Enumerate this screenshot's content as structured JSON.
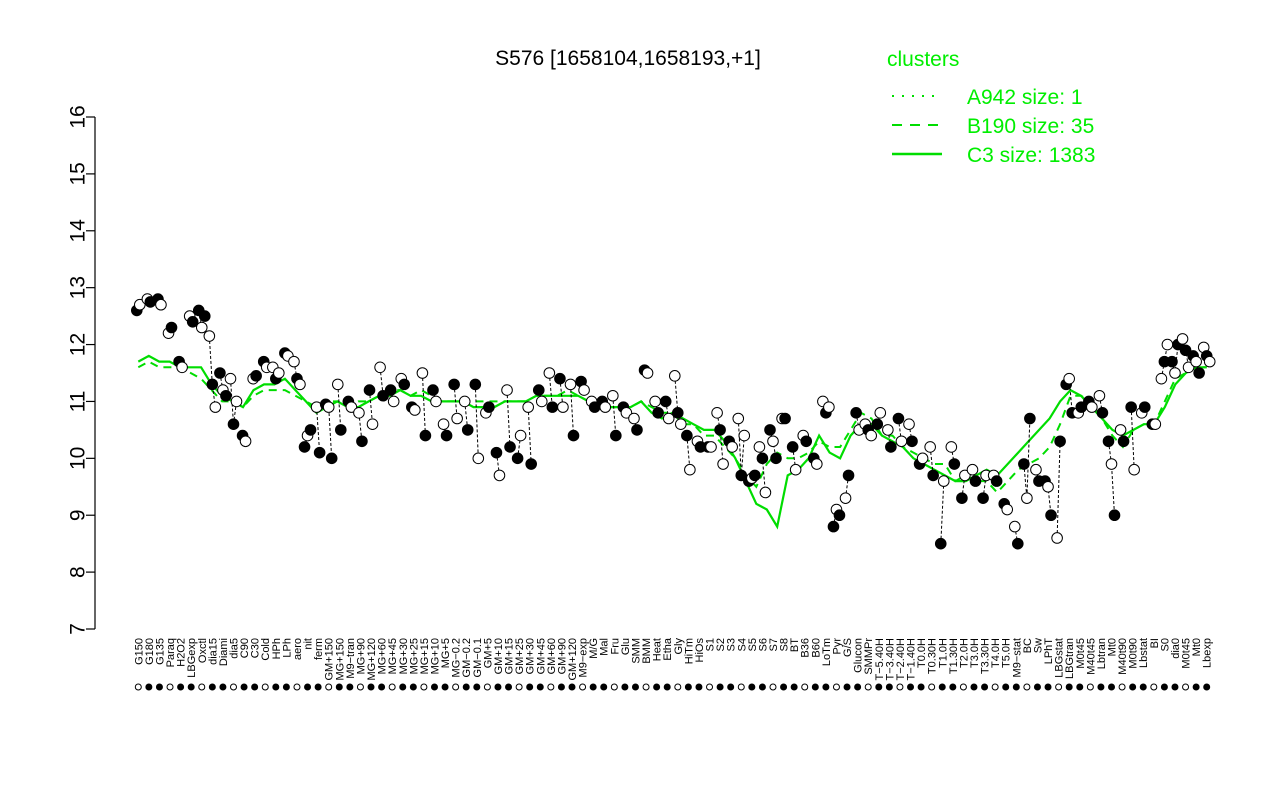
{
  "chart_data": {
    "type": "scatter",
    "title": "S576 [1658104,1658193,+1]",
    "ylim": [
      7,
      16
    ],
    "yticks": [
      "7",
      "8",
      "9",
      "10",
      "11",
      "12",
      "13",
      "14",
      "15",
      "16"
    ],
    "ytick_values": [
      7,
      8,
      9,
      10,
      11,
      12,
      13,
      14,
      15,
      16
    ],
    "xlabels": [
      "G150",
      "G180",
      "G135",
      "Paraq",
      "H2O2",
      "LBGexp",
      "Oxctl",
      "dia15",
      "Diami",
      "dia5",
      "C90",
      "C30",
      "Cold",
      "HPh",
      "LPh",
      "aero",
      "nit",
      "ferm",
      "GM+150",
      "MG+150",
      "M9−tran",
      "MG+90",
      "MG+120",
      "MG+60",
      "MG+45",
      "MG+30",
      "MG+25",
      "MG+15",
      "MG+10",
      "MG+5",
      "MG−0.2",
      "GM−0.2",
      "GM−0.1",
      "GM+5",
      "GM+10",
      "GM+15",
      "GM+25",
      "GM+30",
      "GM+45",
      "GM+60",
      "GM+90",
      "GM+120",
      "M9−exp",
      "M/G",
      "Mal",
      "Fru",
      "Glu",
      "SMM",
      "BMM",
      "Heat",
      "Etha",
      "Gly",
      "HiTm",
      "HiOs",
      "S1",
      "S2",
      "S3",
      "S4",
      "S5",
      "S6",
      "S7",
      "S8",
      "BT",
      "B36",
      "B60",
      "LoTm",
      "Pyr",
      "G/S",
      "Glucon",
      "SMMPr",
      "T−5.40H",
      "T−3.40H",
      "T−2.40H",
      "T−1.40H",
      "T0.0H",
      "T0.30H",
      "T1.0H",
      "T1.30H",
      "T2.0H",
      "T3.0H",
      "T3.30H",
      "T4.0H",
      "T5.0H",
      "M9−stat",
      "BC",
      "Sw",
      "LPhT",
      "LBGstat",
      "LBGtran",
      "M0t45",
      "M40t45",
      "Lbtran",
      "Mt0",
      "M40t90",
      "M0t90",
      "Lbstat",
      "BI",
      "S0",
      "dia0",
      "M0t45",
      "Mt0",
      "Lbexp"
    ],
    "groups": [
      {
        "label": "G150",
        "values": [
          12.6,
          12.7
        ]
      },
      {
        "label": "G180",
        "values": [
          12.8,
          12.75
        ]
      },
      {
        "label": "G135",
        "values": [
          12.8,
          12.7
        ]
      },
      {
        "label": "Paraq",
        "values": [
          12.2,
          12.3
        ]
      },
      {
        "label": "H2O2",
        "values": [
          11.7,
          11.6
        ]
      },
      {
        "label": "LBGexp",
        "values": [
          12.5,
          12.4
        ]
      },
      {
        "label": "Oxctl",
        "values": [
          12.6,
          12.3,
          12.5
        ]
      },
      {
        "label": "dia15",
        "values": [
          12.15,
          11.3,
          10.9
        ]
      },
      {
        "label": "Diami",
        "values": [
          11.5,
          11.2,
          11.1
        ]
      },
      {
        "label": "dia5",
        "values": [
          11.4,
          10.6,
          11.0
        ]
      },
      {
        "label": "C90",
        "values": [
          10.4,
          10.3
        ]
      },
      {
        "label": "C30",
        "values": [
          11.4,
          11.45
        ]
      },
      {
        "label": "Cold",
        "values": [
          11.7,
          11.6
        ]
      },
      {
        "label": "HPh",
        "values": [
          11.6,
          11.4,
          11.5
        ]
      },
      {
        "label": "LPh",
        "values": [
          11.85,
          11.8
        ]
      },
      {
        "label": "aero",
        "values": [
          11.7,
          11.4,
          11.3
        ]
      },
      {
        "label": "nit",
        "values": [
          10.2,
          10.4,
          10.5
        ]
      },
      {
        "label": "ferm",
        "values": [
          10.9,
          10.1
        ]
      },
      {
        "label": "GM+150",
        "values": [
          10.95,
          10.9,
          10.0
        ]
      },
      {
        "label": "MG+150",
        "values": [
          11.3,
          10.5
        ]
      },
      {
        "label": "M9−tran",
        "values": [
          11.0,
          10.9
        ]
      },
      {
        "label": "MG+90",
        "values": [
          10.8,
          10.3
        ]
      },
      {
        "label": "MG+120",
        "values": [
          11.2,
          10.6
        ]
      },
      {
        "label": "MG+60",
        "values": [
          11.6,
          11.1
        ]
      },
      {
        "label": "MG+45",
        "values": [
          11.2,
          11.0
        ]
      },
      {
        "label": "MG+30",
        "values": [
          11.4,
          11.3
        ]
      },
      {
        "label": "MG+25",
        "values": [
          10.9,
          10.85
        ]
      },
      {
        "label": "MG+15",
        "values": [
          11.5,
          10.4
        ]
      },
      {
        "label": "MG+10",
        "values": [
          11.2,
          11.0
        ]
      },
      {
        "label": "MG+5",
        "values": [
          10.6,
          10.4
        ]
      },
      {
        "label": "MG−0.2",
        "values": [
          11.3,
          10.7
        ]
      },
      {
        "label": "GM−0.2",
        "values": [
          11.0,
          10.5
        ]
      },
      {
        "label": "GM−0.1",
        "values": [
          11.3,
          10.0
        ]
      },
      {
        "label": "GM+5",
        "values": [
          10.8,
          10.9
        ]
      },
      {
        "label": "GM+10",
        "values": [
          10.1,
          9.7
        ]
      },
      {
        "label": "GM+15",
        "values": [
          11.2,
          10.2
        ]
      },
      {
        "label": "GM+25",
        "values": [
          10.0,
          10.4
        ]
      },
      {
        "label": "GM+30",
        "values": [
          10.9,
          9.9
        ]
      },
      {
        "label": "GM+45",
        "values": [
          11.2,
          11.0
        ]
      },
      {
        "label": "GM+60",
        "values": [
          11.5,
          10.9
        ]
      },
      {
        "label": "GM+90",
        "values": [
          11.4,
          10.9
        ]
      },
      {
        "label": "GM+120",
        "values": [
          11.3,
          10.4
        ]
      },
      {
        "label": "M9−exp",
        "values": [
          11.35,
          11.2
        ]
      },
      {
        "label": "M/G",
        "values": [
          11.0,
          10.9
        ]
      },
      {
        "label": "Mal",
        "values": [
          11.0,
          10.9
        ]
      },
      {
        "label": "Fru",
        "values": [
          11.1,
          10.4
        ]
      },
      {
        "label": "Glu",
        "values": [
          10.9,
          10.8
        ]
      },
      {
        "label": "SMM",
        "values": [
          10.7,
          10.5
        ]
      },
      {
        "label": "BMM",
        "values": [
          11.55,
          11.5
        ]
      },
      {
        "label": "Heat",
        "values": [
          11.0,
          10.8
        ]
      },
      {
        "label": "Etha",
        "values": [
          11.0,
          10.7
        ]
      },
      {
        "label": "Gly",
        "values": [
          11.45,
          10.8,
          10.6
        ]
      },
      {
        "label": "HiTm",
        "values": [
          10.4,
          9.8
        ]
      },
      {
        "label": "HiOs",
        "values": [
          10.3,
          10.2
        ]
      },
      {
        "label": "S1",
        "values": [
          10.2,
          10.2
        ]
      },
      {
        "label": "S2",
        "values": [
          10.8,
          10.5,
          9.9
        ]
      },
      {
        "label": "S3",
        "values": [
          10.3,
          10.2
        ]
      },
      {
        "label": "S4",
        "values": [
          10.7,
          9.7,
          10.4
        ]
      },
      {
        "label": "S5",
        "values": [
          9.6,
          9.65,
          9.7
        ]
      },
      {
        "label": "S6",
        "values": [
          10.2,
          10.0,
          9.4
        ]
      },
      {
        "label": "S7",
        "values": [
          10.5,
          10.3,
          10.0
        ]
      },
      {
        "label": "S8",
        "values": [
          10.7,
          10.7
        ]
      },
      {
        "label": "BT",
        "values": [
          10.2,
          9.8
        ]
      },
      {
        "label": "B36",
        "values": [
          10.4,
          10.3
        ]
      },
      {
        "label": "B60",
        "values": [
          10.0,
          9.9
        ]
      },
      {
        "label": "LoTm",
        "values": [
          11.0,
          10.8,
          10.9
        ]
      },
      {
        "label": "Pyr",
        "values": [
          8.8,
          9.1,
          9.0
        ]
      },
      {
        "label": "G/S",
        "values": [
          9.3,
          9.7
        ]
      },
      {
        "label": "Glucon",
        "values": [
          10.8,
          10.5
        ]
      },
      {
        "label": "SMMPr",
        "values": [
          10.6,
          10.5,
          10.4
        ]
      },
      {
        "label": "T−5.40H",
        "values": [
          10.6,
          10.8
        ]
      },
      {
        "label": "T−3.40H",
        "values": [
          10.5,
          10.2
        ]
      },
      {
        "label": "T−2.40H",
        "values": [
          10.7,
          10.3
        ]
      },
      {
        "label": "T−1.40H",
        "values": [
          10.6,
          10.3
        ]
      },
      {
        "label": "T0.0H",
        "values": [
          9.9,
          10.0
        ]
      },
      {
        "label": "T0.30H",
        "values": [
          10.2,
          9.7
        ]
      },
      {
        "label": "T1.0H",
        "values": [
          8.5,
          9.6
        ]
      },
      {
        "label": "T1.30H",
        "values": [
          10.2,
          9.9
        ]
      },
      {
        "label": "T2.0H",
        "values": [
          9.3,
          9.7
        ]
      },
      {
        "label": "T3.0H",
        "values": [
          9.8,
          9.6
        ]
      },
      {
        "label": "T3.30H",
        "values": [
          9.3,
          9.7
        ]
      },
      {
        "label": "T4.0H",
        "values": [
          9.7,
          9.6
        ]
      },
      {
        "label": "T5.0H",
        "values": [
          9.2,
          9.1
        ]
      },
      {
        "label": "M9−stat",
        "values": [
          8.8,
          8.5
        ]
      },
      {
        "label": "BC",
        "values": [
          9.9,
          9.3,
          10.7
        ]
      },
      {
        "label": "Sw",
        "values": [
          9.8,
          9.6
        ]
      },
      {
        "label": "LPhT",
        "values": [
          9.6,
          9.5,
          9.0
        ]
      },
      {
        "label": "LBGstat",
        "values": [
          8.6,
          10.3
        ]
      },
      {
        "label": "LBGtran",
        "values": [
          11.3,
          11.4,
          10.8
        ]
      },
      {
        "label": "M0t45",
        "values": [
          10.8,
          10.9
        ]
      },
      {
        "label": "M40t45",
        "values": [
          11.0,
          10.9
        ]
      },
      {
        "label": "Lbtran",
        "values": [
          11.1,
          10.8
        ]
      },
      {
        "label": "Mt0",
        "values": [
          10.3,
          9.9,
          9.0
        ]
      },
      {
        "label": "M40t90",
        "values": [
          10.5,
          10.3
        ]
      },
      {
        "label": "M0t90",
        "values": [
          10.9,
          9.8
        ]
      },
      {
        "label": "Lbstat",
        "values": [
          10.8,
          10.9
        ]
      },
      {
        "label": "BI",
        "values": [
          10.6,
          10.6
        ]
      },
      {
        "label": "S0",
        "values": [
          11.4,
          11.7,
          12.0
        ]
      },
      {
        "label": "dia0",
        "values": [
          11.7,
          11.5,
          12.0
        ]
      },
      {
        "label": "M0t45",
        "values": [
          12.1,
          11.9,
          11.6
        ]
      },
      {
        "label": "Mt0",
        "values": [
          11.8,
          11.7,
          11.5
        ]
      },
      {
        "label": "Lbexp",
        "values": [
          11.95,
          11.8,
          11.7
        ]
      }
    ],
    "series": [
      {
        "name": "A942 size: 1",
        "style": "dotted",
        "values": []
      },
      {
        "name": "B190 size: 35",
        "style": "dashed",
        "values": [
          11.6,
          11.7,
          11.6,
          11.6,
          11.6,
          11.5,
          11.4,
          11.2,
          11.0,
          11.0,
          10.9,
          11.1,
          11.2,
          11.2,
          11.2,
          11.1,
          11.0,
          10.9,
          11.0,
          11.0,
          10.9,
          11.0,
          11.0,
          11.1,
          11.2,
          11.2,
          11.1,
          11.2,
          11.1,
          11.0,
          11.0,
          11.0,
          11.0,
          11.0,
          11.0,
          11.0,
          11.0,
          11.0,
          11.1,
          11.1,
          11.1,
          11.2,
          11.1,
          11.0,
          11.0,
          10.9,
          10.9,
          10.9,
          11.0,
          10.9,
          10.8,
          10.8,
          10.6,
          10.6,
          10.4,
          10.4,
          10.2,
          10.0,
          9.7,
          9.5,
          9.9,
          10.1,
          10.0,
          10.0,
          10.1,
          10.3,
          10.2,
          10.2,
          10.5,
          10.8,
          10.7,
          10.4,
          10.4,
          10.2,
          10.1,
          10.0,
          9.9,
          9.9,
          9.6,
          9.7,
          9.6,
          9.6,
          9.4,
          9.6,
          9.8,
          9.9,
          10.0,
          10.2,
          10.6,
          11.1,
          11.1,
          11.0,
          10.7,
          10.4,
          10.2,
          10.5,
          10.6,
          10.6,
          11.0,
          11.4,
          11.5,
          11.6,
          11.6
        ]
      },
      {
        "name": "C3 size: 1383",
        "style": "solid",
        "values": [
          11.7,
          11.8,
          11.7,
          11.7,
          11.6,
          11.6,
          11.6,
          11.3,
          11.1,
          11.0,
          10.9,
          11.2,
          11.3,
          11.3,
          11.4,
          11.2,
          11.0,
          10.8,
          10.9,
          11.0,
          10.9,
          10.9,
          11.0,
          11.1,
          11.1,
          11.2,
          11.1,
          11.1,
          11.0,
          11.0,
          11.0,
          11.0,
          10.9,
          10.9,
          10.9,
          11.0,
          11.0,
          11.0,
          11.1,
          11.1,
          11.1,
          11.1,
          11.1,
          11.0,
          11.0,
          10.9,
          10.9,
          10.9,
          11.0,
          10.8,
          10.7,
          10.8,
          10.7,
          10.6,
          10.5,
          10.5,
          10.3,
          10.0,
          9.6,
          9.2,
          9.1,
          8.8,
          9.7,
          9.8,
          10.0,
          10.4,
          10.1,
          10.0,
          10.4,
          10.6,
          10.6,
          10.4,
          10.3,
          10.2,
          10.0,
          9.9,
          9.8,
          9.7,
          9.6,
          9.6,
          9.7,
          9.8,
          9.7,
          9.9,
          10.1,
          10.3,
          10.5,
          10.7,
          11.0,
          11.2,
          11.1,
          10.9,
          10.7,
          10.5,
          10.4,
          10.5,
          10.6,
          10.6,
          10.9,
          11.3,
          11.5,
          11.6,
          11.6
        ]
      }
    ],
    "legend": {
      "title": "clusters",
      "color": "#00ee00",
      "placement": "top-right"
    },
    "colors": {
      "axis": "#000000",
      "marker_fill_open": "#ffffff",
      "marker_fill_solid": "#000000",
      "cluster": "#00dd00"
    }
  }
}
